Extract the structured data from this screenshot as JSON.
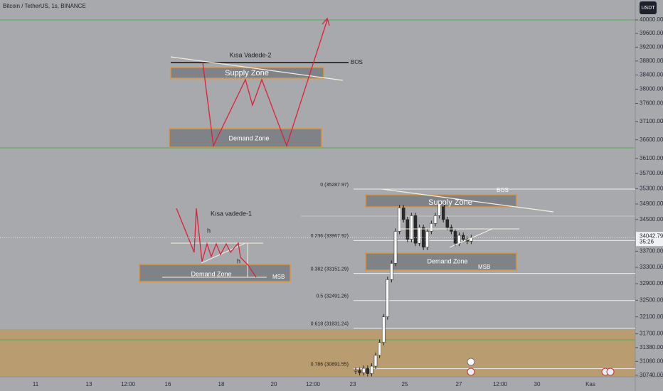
{
  "header": {
    "title": "Bitcoin / TetherUS, 1s, BINANCE",
    "currency": "USDT"
  },
  "price_axis": {
    "scale": "log",
    "ylim": [
      30707,
      40594
    ],
    "ticks": [
      "40000.00",
      "39600.00",
      "39200.00",
      "38800.00",
      "38400.00",
      "38000.00",
      "37600.00",
      "37100.00",
      "36600.00",
      "36100.00",
      "35700.00",
      "35300.00",
      "34900.00",
      "34500.00",
      "33700.00",
      "33300.00",
      "32900.00",
      "32500.00",
      "32100.00",
      "31700.00",
      "31380.00",
      "31060.00",
      "30740.00"
    ],
    "current_price": 34042.79,
    "countdown": "35:26"
  },
  "time_axis": {
    "labels": [
      "11",
      "13",
      "12:00",
      "16",
      "18",
      "20",
      "12:00",
      "23",
      "25",
      "27",
      "12:00",
      "30",
      "Kas"
    ]
  },
  "annotations": {
    "pattern_2": {
      "title": "Kısa Vadede-2",
      "bos": "BOS",
      "supply": "Supply Zone",
      "demand": "Demand Zone"
    },
    "pattern_1": {
      "title": "Kısa vadede-1",
      "h_upper": "h",
      "h_lower": "h",
      "demand": "Demand Zone",
      "msb": "MSB"
    },
    "live": {
      "bos": "BOS",
      "supply": "Supply Zone",
      "demand": "Demand Zone",
      "msb": "MSB"
    }
  },
  "fibonacci": [
    {
      "label": "0 (35287.97)",
      "price": 35287.97
    },
    {
      "label": "0.236 (33967.92)",
      "price": 33967.92
    },
    {
      "label": "0.382 (33151.29)",
      "price": 33151.29
    },
    {
      "label": "0.5 (32491.26)",
      "price": 32491.26
    },
    {
      "label": "0.618 (31831.24)",
      "price": 31831.24
    },
    {
      "label": "0.786 (30891.55)",
      "price": 30891.55
    }
  ],
  "candles": {
    "closes": [
      30850,
      30800,
      30900,
      30780,
      30950,
      31200,
      31500,
      32100,
      33000,
      33400,
      34200,
      34800,
      34500,
      34000,
      34600,
      33900,
      34300,
      33800,
      34200,
      34400,
      34600,
      34900,
      34500,
      34300,
      34200,
      33900,
      34100,
      34000,
      33950,
      34043
    ]
  }
}
